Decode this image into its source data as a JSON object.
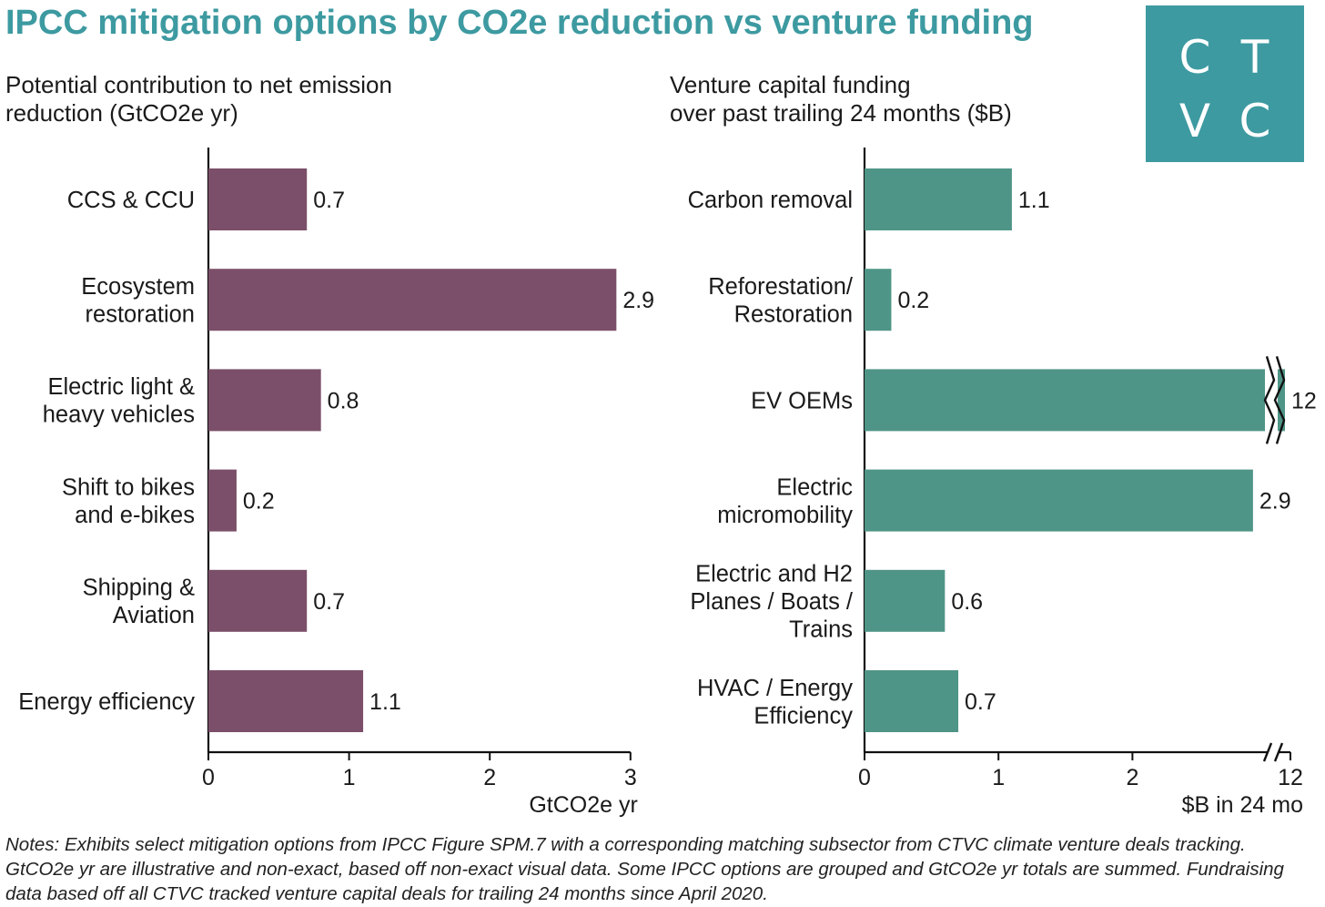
{
  "title": "IPCC mitigation options by CO2e reduction vs venture funding",
  "logo": {
    "letters": [
      "C",
      "T",
      "V",
      "C"
    ],
    "color": "#3d9aa1"
  },
  "notes": "Notes: Exhibits select mitigation options from IPCC Figure SPM.7 with a corresponding matching subsector from CTVC climate venture deals tracking. GtCO2e yr are illustrative and non-exact, based off non-exact visual data. Some IPCC options are grouped and GtCO2e yr totals are summed. Fundraising data based off all CTVC tracked venture capital deals for trailing 24 months since April 2020.",
  "chart_data": [
    {
      "type": "bar",
      "orientation": "horizontal",
      "title": "Potential contribution to net emission\nreduction (GtCO2e yr)",
      "categories": [
        "CCS & CCU",
        "Ecosystem\nrestoration",
        "Electric light &\nheavy vehicles",
        "Shift to bikes\nand e-bikes",
        "Shipping &\nAviation",
        "Energy efficiency"
      ],
      "values": [
        0.7,
        2.9,
        0.8,
        0.2,
        0.7,
        1.1
      ],
      "data_labels": [
        "0.7",
        "2.9",
        "0.8",
        "0.2",
        "0.7",
        "1.1"
      ],
      "xlabel": "GtCO2e yr",
      "xticks": [
        "0",
        "1",
        "2",
        "3"
      ],
      "xlim": [
        0,
        3
      ],
      "color": "#7b4f69",
      "grid": false
    },
    {
      "type": "bar",
      "orientation": "horizontal",
      "title": "Venture capital funding\nover past trailing 24 months ($B)",
      "categories": [
        "Carbon removal",
        "Reforestation/\nRestoration",
        "EV OEMs",
        "Electric\nmicromobility",
        "Electric and H2\nPlanes / Boats /\nTrains",
        "HVAC / Energy\nEfficiency"
      ],
      "values": [
        1.1,
        0.2,
        12,
        2.9,
        0.6,
        0.7
      ],
      "data_labels": [
        "1.1",
        "0.2",
        "12",
        "2.9",
        "0.6",
        "0.7"
      ],
      "xlabel": "$B in 24 mo",
      "xticks": [
        "0",
        "1",
        "2",
        "12"
      ],
      "xlim": [
        0,
        3
      ],
      "axis_break": "between 3 and 12",
      "color": "#4f9587",
      "grid": false
    }
  ]
}
